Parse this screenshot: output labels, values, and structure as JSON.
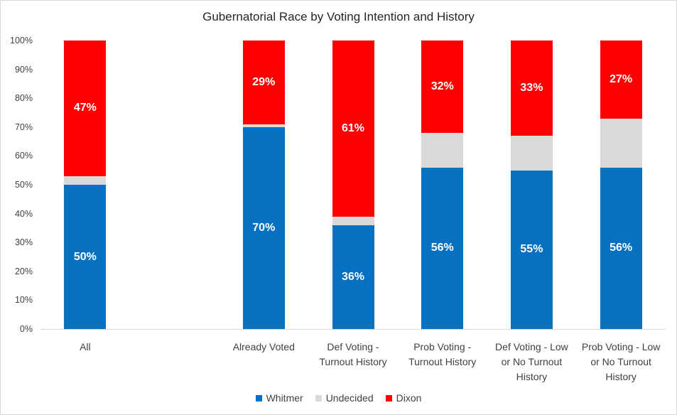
{
  "chart_data": {
    "type": "bar",
    "stacked": true,
    "title": "Gubernatorial Race by Voting Intention and History",
    "categories": [
      {
        "label_lines": [
          "All"
        ]
      },
      {
        "label_lines": []
      },
      {
        "label_lines": [
          "Already Voted"
        ]
      },
      {
        "label_lines": [
          "Def Voting -",
          "Turnout History"
        ]
      },
      {
        "label_lines": [
          "Prob Voting -",
          "Turnout History"
        ]
      },
      {
        "label_lines": [
          "Def Voting - Low",
          "or No Turnout",
          "History"
        ]
      },
      {
        "label_lines": [
          "Prob Voting - Low",
          "or No Turnout",
          "History"
        ]
      }
    ],
    "series": [
      {
        "name": "Whitmer",
        "color": "#0771C1",
        "values": [
          50,
          null,
          70,
          36,
          56,
          55,
          56
        ],
        "labels": [
          "50%",
          null,
          "70%",
          "36%",
          "56%",
          "55%",
          "56%"
        ]
      },
      {
        "name": "Undecided",
        "color": "#D9D9D9",
        "values": [
          3,
          null,
          1,
          3,
          12,
          12,
          17
        ],
        "labels": [
          null,
          null,
          null,
          null,
          null,
          null,
          null
        ]
      },
      {
        "name": "Dixon",
        "color": "#FF0000",
        "values": [
          47,
          null,
          29,
          61,
          32,
          33,
          27
        ],
        "labels": [
          "47%",
          null,
          "29%",
          "61%",
          "32%",
          "33%",
          "27%"
        ]
      }
    ],
    "y_axis": {
      "min": 0,
      "max": 100,
      "tick_step": 10,
      "tick_labels": [
        "0%",
        "10%",
        "20%",
        "30%",
        "40%",
        "50%",
        "60%",
        "70%",
        "80%",
        "90%",
        "100%"
      ]
    },
    "ylim": [
      0,
      100
    ],
    "grid": false,
    "legend": {
      "position": "bottom-center",
      "entries": [
        "Whitmer",
        "Undecided",
        "Dixon"
      ]
    },
    "colors": {
      "whitmer_blue": "#0771C1",
      "undecided_gray": "#D9D9D9",
      "dixon_red": "#FF0000",
      "axis_line": "#D9D9D9",
      "axis_text": "#404040",
      "title_text": "#262626",
      "data_label_text": "#FFFFFF"
    }
  }
}
